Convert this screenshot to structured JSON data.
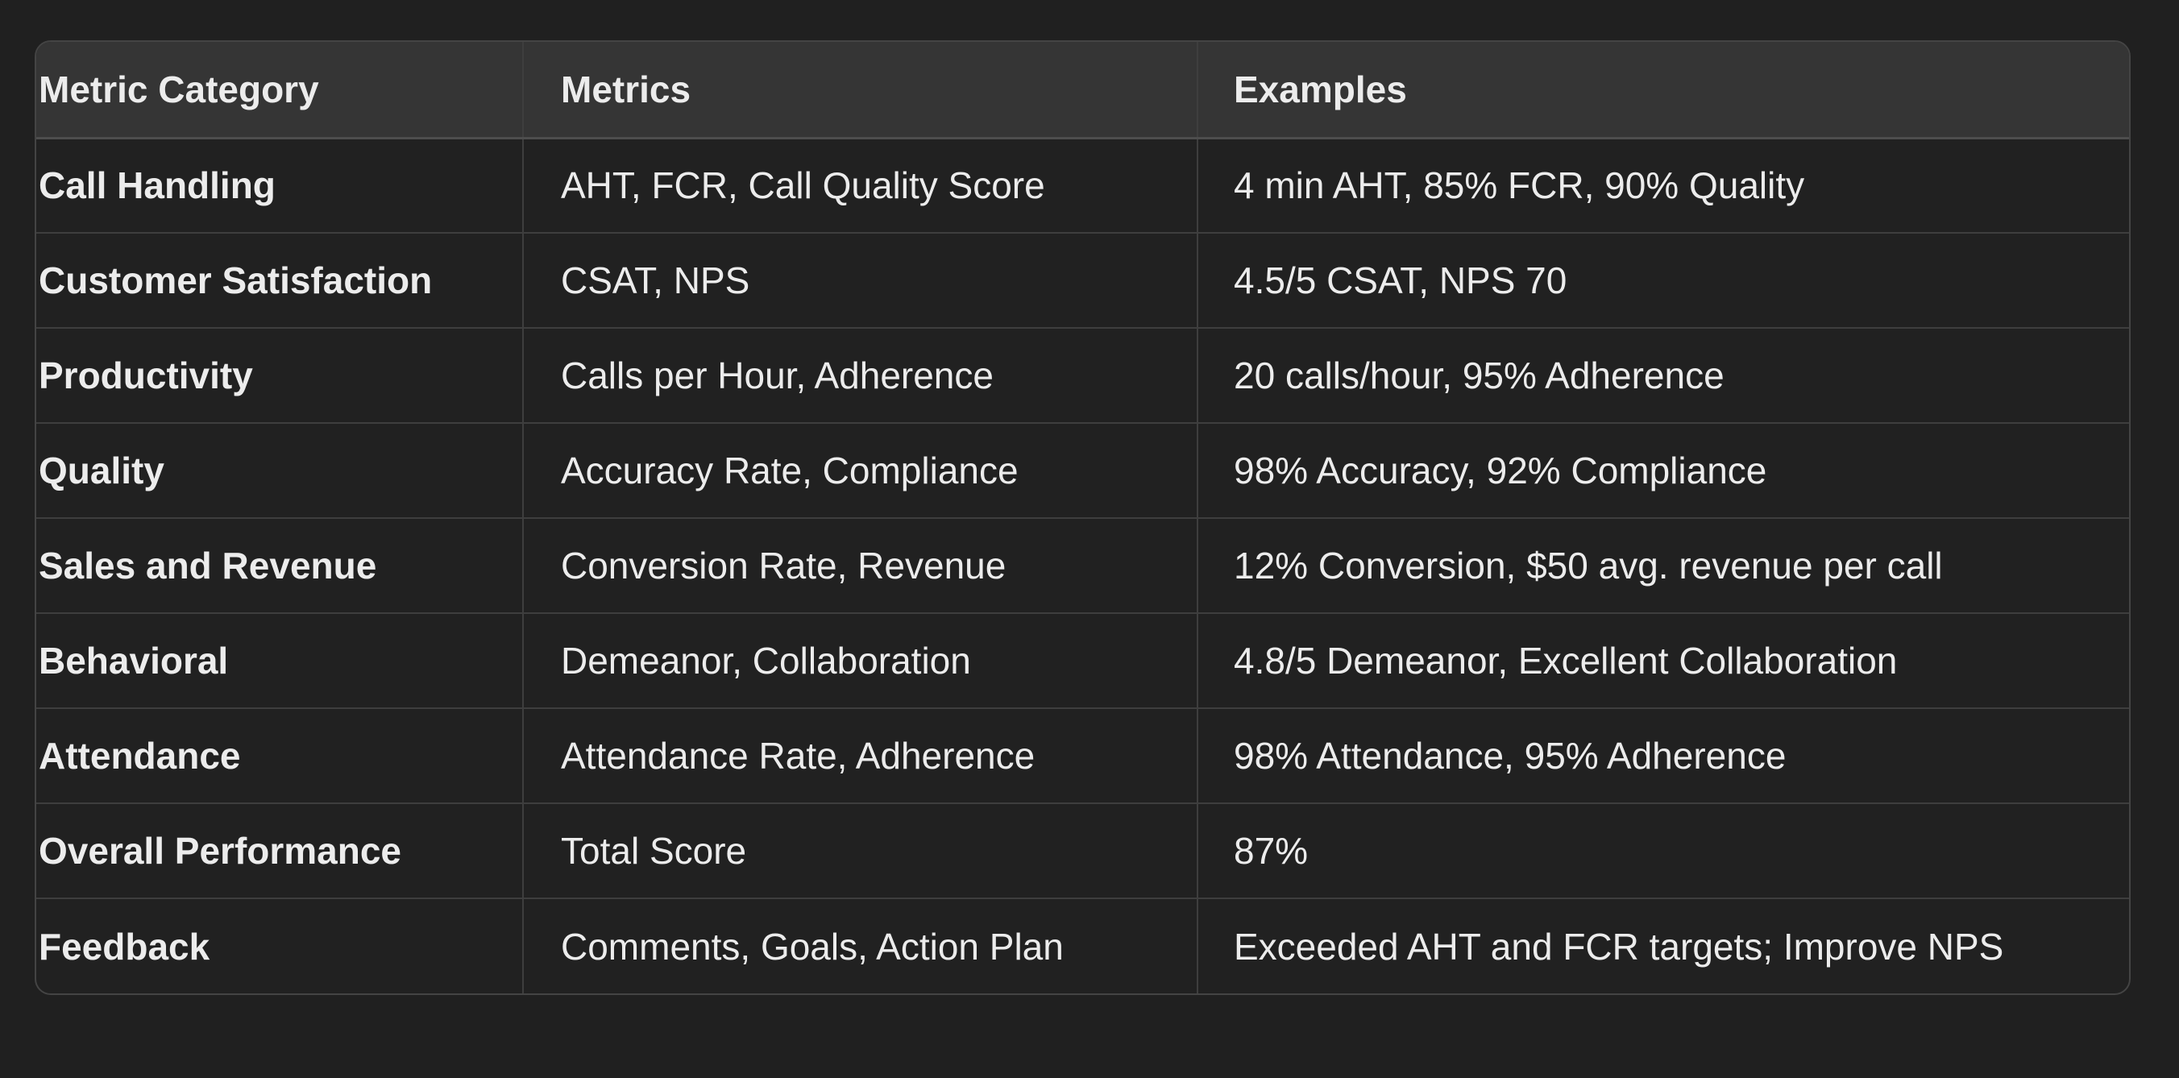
{
  "table": {
    "headers": [
      "Metric Category",
      "Metrics",
      "Examples"
    ],
    "rows": [
      {
        "category": "Call Handling",
        "metrics": "AHT, FCR, Call Quality Score",
        "examples": "4 min AHT, 85% FCR, 90% Quality"
      },
      {
        "category": "Customer Satisfaction",
        "metrics": "CSAT, NPS",
        "examples": "4.5/5 CSAT, NPS 70"
      },
      {
        "category": "Productivity",
        "metrics": "Calls per Hour, Adherence",
        "examples": "20 calls/hour, 95% Adherence"
      },
      {
        "category": "Quality",
        "metrics": "Accuracy Rate, Compliance",
        "examples": "98% Accuracy, 92% Compliance"
      },
      {
        "category": "Sales and Revenue",
        "metrics": "Conversion Rate, Revenue",
        "examples": "12% Conversion, $50 avg. revenue per call"
      },
      {
        "category": "Behavioral",
        "metrics": "Demeanor, Collaboration",
        "examples": "4.8/5 Demeanor, Excellent Collaboration"
      },
      {
        "category": "Attendance",
        "metrics": "Attendance Rate, Adherence",
        "examples": "98% Attendance, 95% Adherence"
      },
      {
        "category": "Overall Performance",
        "metrics": "Total Score",
        "examples": "87%"
      },
      {
        "category": "Feedback",
        "metrics": "Comments, Goals, Action Plan",
        "examples": "Exceeded AHT and FCR targets; Improve NPS"
      }
    ]
  },
  "colors": {
    "page_background": "#202020",
    "header_background": "#353535",
    "body_background": "#212121",
    "border": "#444444",
    "text": "#ececec"
  }
}
